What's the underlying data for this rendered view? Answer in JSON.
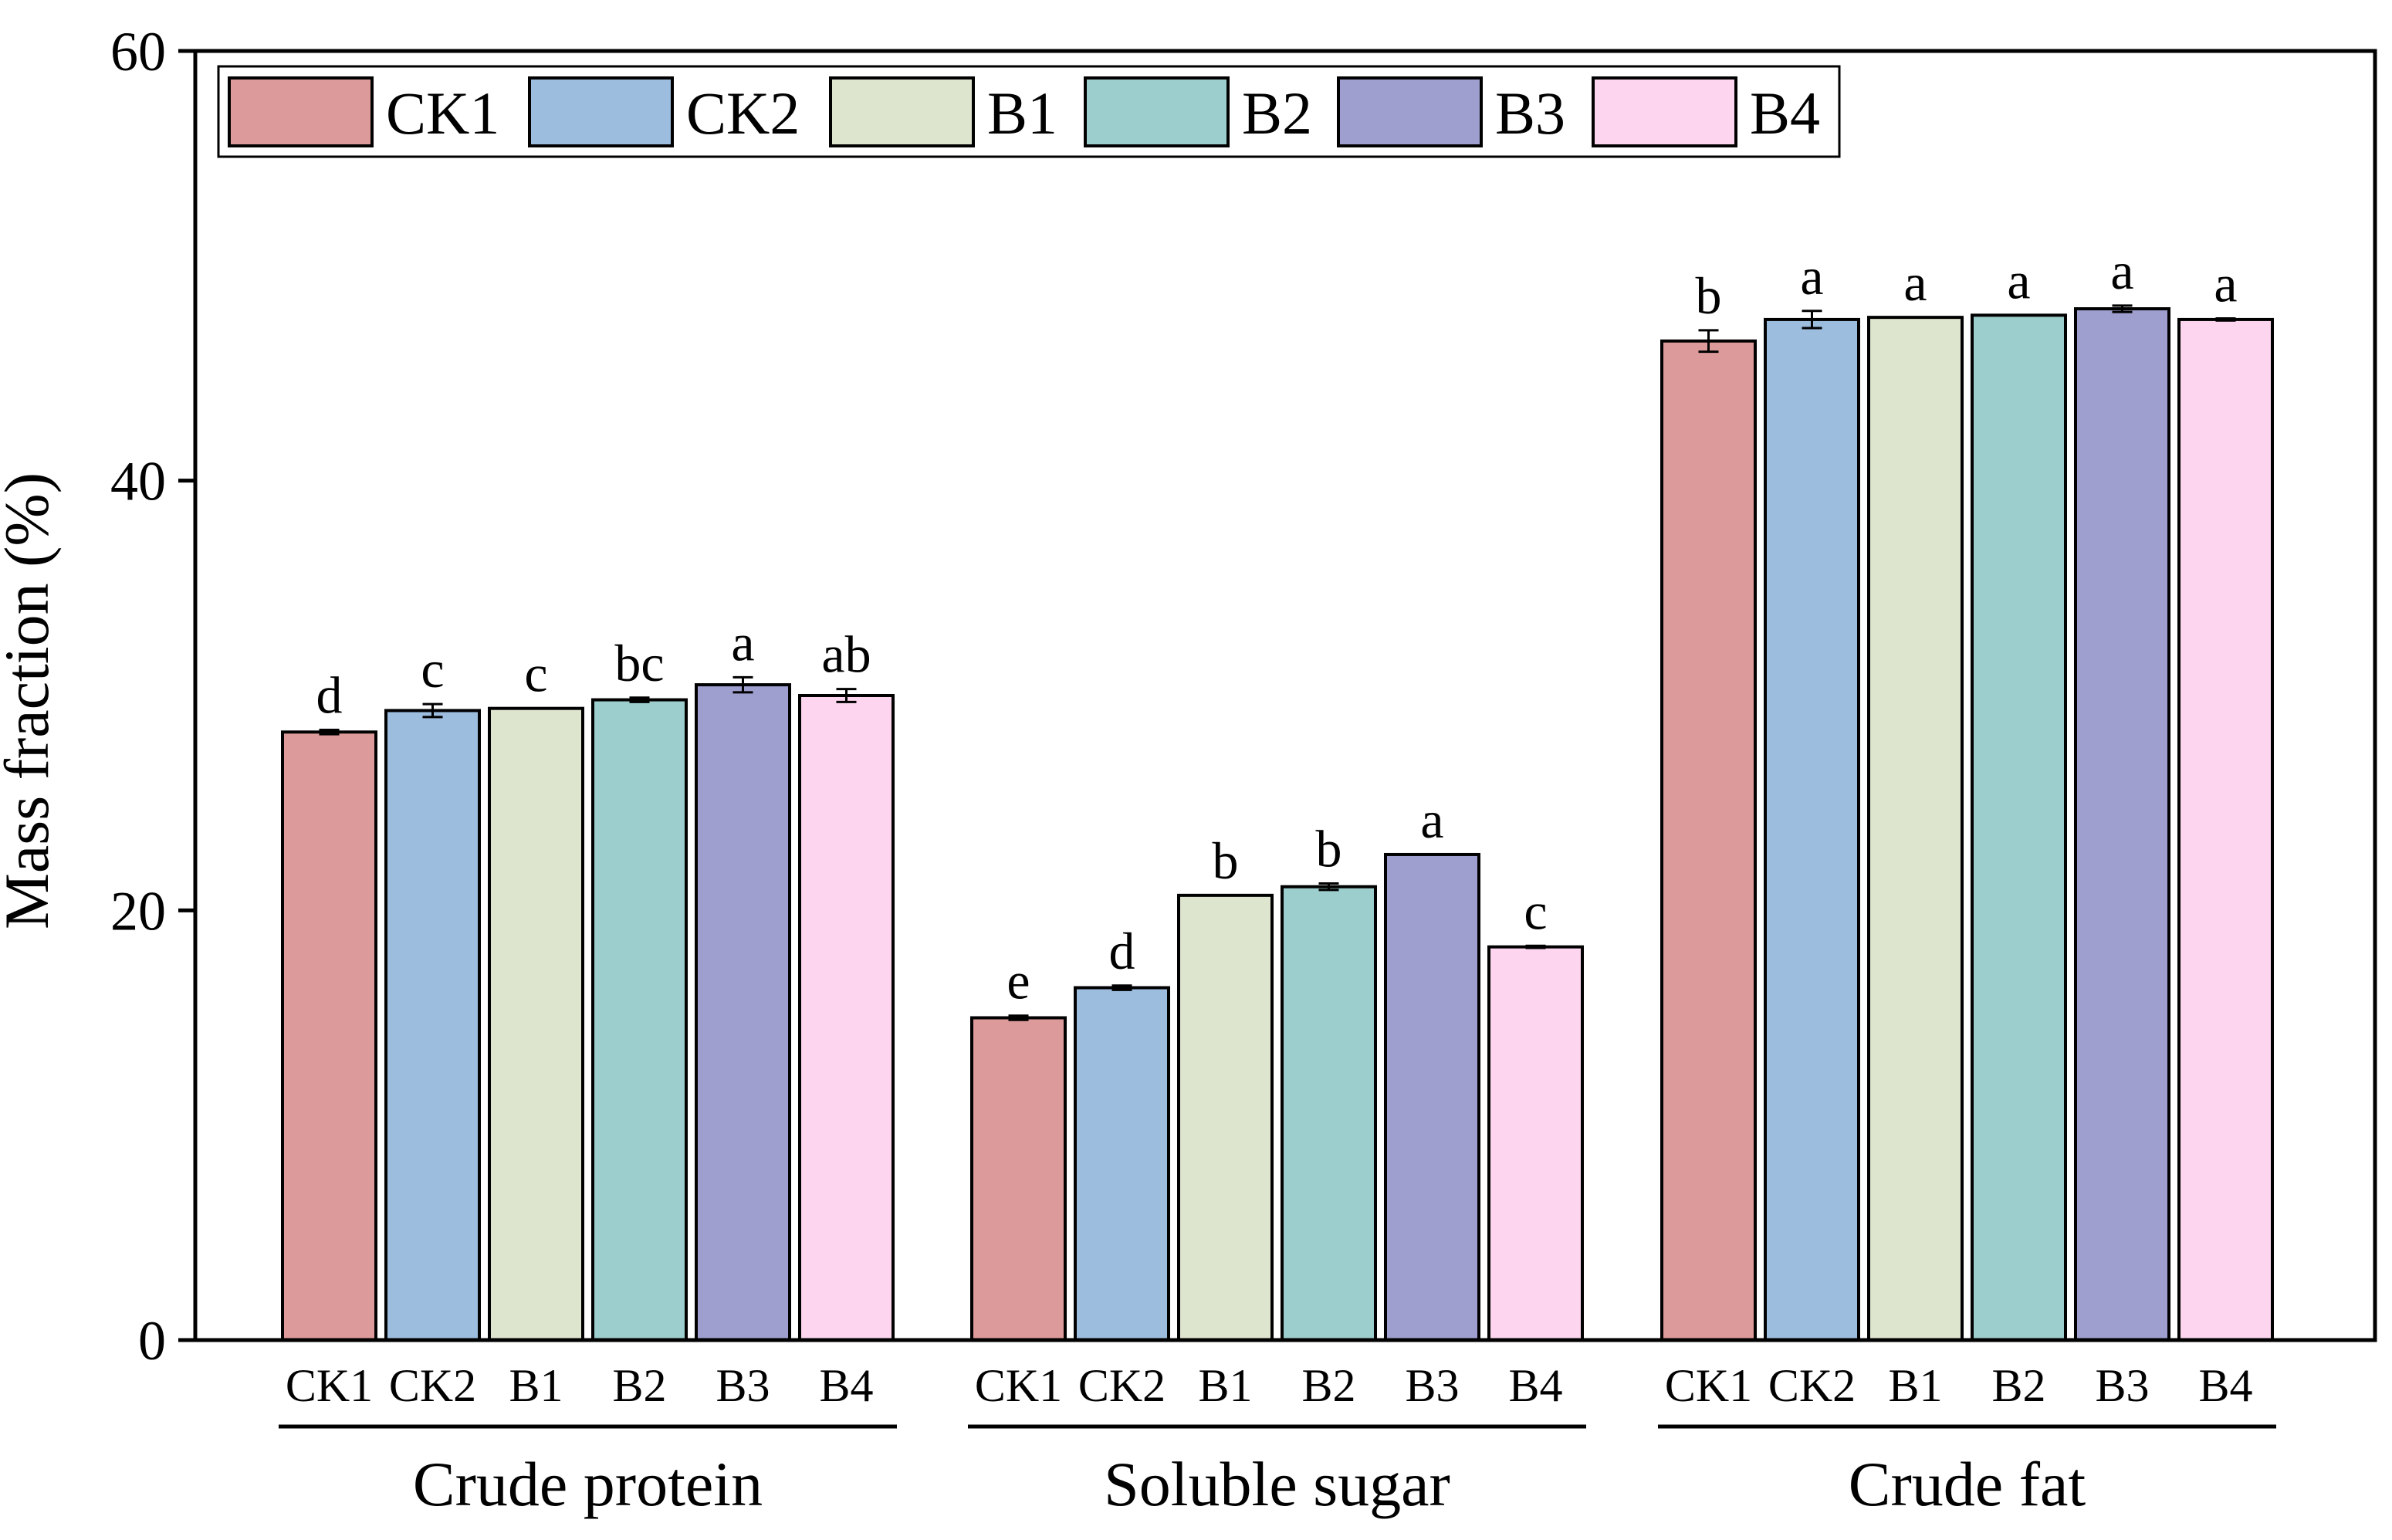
{
  "chart_data": {
    "type": "bar",
    "title": "",
    "ylabel": "Mass fraction (%)",
    "xlabel": "",
    "ylim": [
      0,
      60
    ],
    "yticks": [
      0,
      20,
      40,
      60
    ],
    "groups": [
      "Crude protein",
      "Soluble sugar",
      "Crude fat"
    ],
    "legend_position": "top-left",
    "series": [
      {
        "name": "CK1",
        "color": "#DD9A9A",
        "values": [
          28.3,
          15.0,
          46.5
        ],
        "errors": [
          0.1,
          0.1,
          0.5
        ],
        "letters": [
          "d",
          "e",
          "b"
        ]
      },
      {
        "name": "CK2",
        "color": "#9DBDDF",
        "values": [
          29.3,
          16.4,
          47.5
        ],
        "errors": [
          0.3,
          0.1,
          0.4
        ],
        "letters": [
          "c",
          "d",
          "a"
        ]
      },
      {
        "name": "B1",
        "color": "#DEE5CE",
        "values": [
          29.4,
          20.7,
          47.6
        ],
        "errors": [
          0.0,
          0.0,
          0.0
        ],
        "letters": [
          "c",
          "b",
          "a"
        ]
      },
      {
        "name": "B2",
        "color": "#9CCECD",
        "values": [
          29.8,
          21.1,
          47.7
        ],
        "errors": [
          0.1,
          0.15,
          0.0
        ],
        "letters": [
          "bc",
          "b",
          "a"
        ]
      },
      {
        "name": "B3",
        "color": "#9E9ECF",
        "values": [
          30.5,
          22.6,
          48.0
        ],
        "errors": [
          0.35,
          0.0,
          0.15
        ],
        "letters": [
          "a",
          "a",
          "a"
        ]
      },
      {
        "name": "B4",
        "color": "#FDD5EE",
        "values": [
          30.0,
          18.3,
          47.5
        ],
        "errors": [
          0.3,
          0.05,
          0.05
        ],
        "letters": [
          "ab",
          "c",
          "a"
        ]
      }
    ]
  }
}
